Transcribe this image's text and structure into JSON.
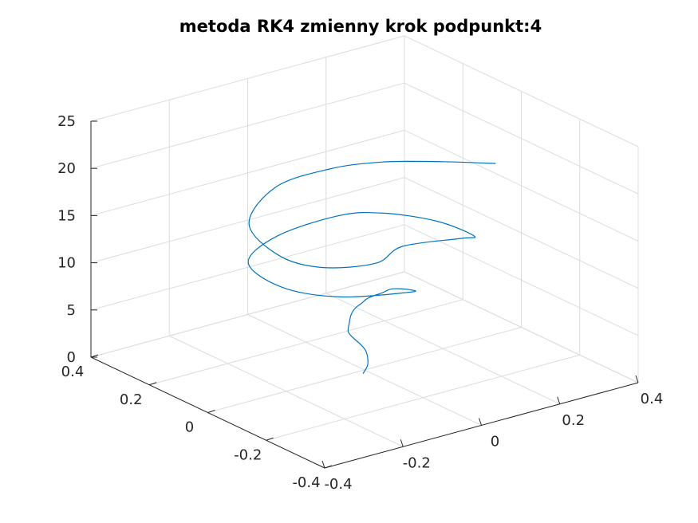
{
  "chart_data": {
    "type": "line",
    "title": "metoda RK4 zmienny krok podpunkt:4",
    "xlabel": "",
    "ylabel": "",
    "zlabel": "",
    "grid": true,
    "xlim": [
      -0.4,
      0.4
    ],
    "ylim": [
      -0.4,
      0.4
    ],
    "zlim": [
      0,
      25
    ],
    "x_ticks": [
      "-0.4",
      "-0.2",
      "0",
      "0.2",
      "0.4"
    ],
    "y_ticks": [
      "-0.4",
      "-0.2",
      "0",
      "0.2",
      "0.4"
    ],
    "z_ticks": [
      "0",
      "5",
      "10",
      "15",
      "20",
      "25"
    ],
    "series": [
      {
        "color": "#0072bd",
        "x": [
          -0.015,
          0.0,
          0.008,
          0.01,
          0.004,
          -0.006,
          -0.012,
          -0.002,
          0.01,
          0.02,
          0.03,
          0.04,
          0.06,
          0.07,
          0.075,
          0.05,
          -0.1,
          -0.18,
          -0.17,
          -0.05,
          0.1,
          0.16,
          0.2,
          0.19,
          0.14,
          0.0,
          -0.12,
          -0.24,
          -0.29,
          -0.25,
          -0.1,
          0.03,
          0.12,
          0.2,
          0.26
        ],
        "y": [
          -0.015,
          -0.01,
          0.0,
          0.01,
          0.02,
          0.03,
          0.04,
          0.05,
          0.06,
          0.06,
          0.05,
          0.04,
          0.02,
          0.0,
          -0.05,
          -0.09,
          -0.05,
          0.04,
          0.17,
          0.23,
          0.22,
          0.15,
          0.02,
          -0.12,
          -0.14,
          -0.13,
          -0.2,
          -0.18,
          -0.1,
          0.06,
          0.17,
          0.16,
          0.1,
          0.0,
          -0.1
        ],
        "z": [
          0.0,
          0.6,
          1.2,
          1.8,
          2.4,
          3.0,
          3.6,
          4.2,
          4.8,
          5.4,
          6.0,
          6.6,
          7.2,
          7.8,
          8.4,
          9.0,
          9.6,
          10.2,
          10.8,
          11.4,
          12.0,
          12.6,
          13.2,
          13.8,
          14.4,
          15.0,
          15.6,
          16.2,
          16.8,
          17.4,
          18.0,
          18.6,
          19.2,
          19.8,
          20.4
        ]
      }
    ]
  }
}
